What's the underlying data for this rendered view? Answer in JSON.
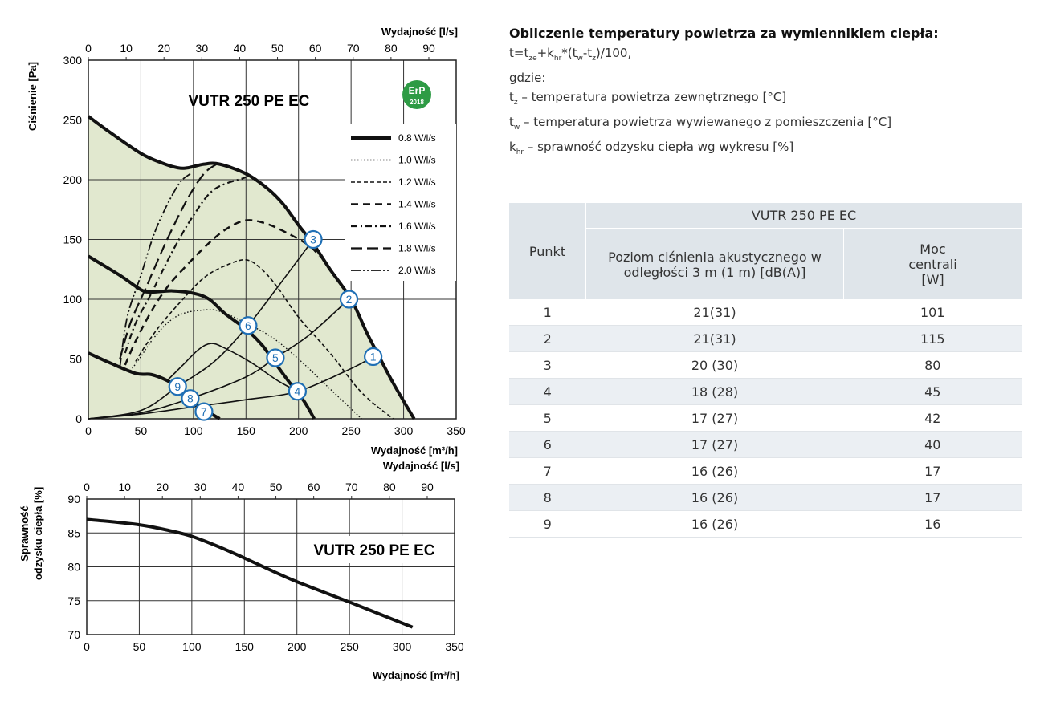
{
  "info": {
    "title": "Obliczenie temperatury powietrza za wymiennikiem ciepła:",
    "formula": [
      "t=t",
      "ze",
      "+k",
      "hr",
      "*(t",
      "w",
      "-t",
      "z",
      ")/100,"
    ],
    "where": "gdzie:",
    "defs": [
      {
        "sym": "t",
        "sub": "z",
        "text": " – temperatura powietrza zewnętrznego [°C]"
      },
      {
        "sym": "t",
        "sub": "w",
        "text": " – temperatura powietrza wywiewanego z pomieszczenia [°C]"
      },
      {
        "sym": "k",
        "sub": "hr",
        "text": " – sprawność odzysku ciepła wg wykresu [%]"
      }
    ]
  },
  "table": {
    "model": "VUTR 250 PE EC",
    "headers": [
      "Punkt",
      "Poziom ciśnienia akustycznego w odległości 3 m (1 m) [dB(A)]",
      "Moc centrali [W]"
    ],
    "rows": [
      [
        "1",
        "21(31)",
        "101"
      ],
      [
        "2",
        "21(31)",
        "115"
      ],
      [
        "3",
        "20 (30)",
        "80"
      ],
      [
        "4",
        "18 (28)",
        "45"
      ],
      [
        "5",
        "17 (27)",
        "42"
      ],
      [
        "6",
        "17 (27)",
        "40"
      ],
      [
        "7",
        "16 (26)",
        "17"
      ],
      [
        "8",
        "16 (26)",
        "17"
      ],
      [
        "9",
        "16 (26)",
        "16"
      ]
    ]
  },
  "chart_data": [
    {
      "type": "line",
      "title": "VUTR 250 PE EC",
      "badge": "ErP 2018",
      "xlabel": "Wydajność [m³/h]",
      "x2label": "Wydajność [l/s]",
      "ylabel": "Ciśnienie [Pa]",
      "xlim": [
        0,
        350
      ],
      "ylim": [
        0,
        300
      ],
      "xticks": [
        0,
        50,
        100,
        150,
        200,
        250,
        300,
        350
      ],
      "yticks": [
        0,
        50,
        100,
        150,
        200,
        250,
        300
      ],
      "x2ticks": [
        0,
        10,
        20,
        30,
        40,
        50,
        60,
        70,
        80,
        90
      ],
      "fill_color": "#e1e8cf",
      "legend": [
        "0.8 W/l/s",
        "1.0 W/l/s",
        "1.2 W/l/s",
        "1.4 W/l/s",
        "1.6 W/l/s",
        "1.8 W/l/s",
        "2.0 W/l/s"
      ],
      "fan_curves": [
        [
          [
            0,
            253
          ],
          [
            20,
            240
          ],
          [
            50,
            222
          ],
          [
            70,
            214
          ],
          [
            85,
            210
          ],
          [
            95,
            210
          ],
          [
            110,
            213
          ],
          [
            125,
            213
          ],
          [
            150,
            205
          ],
          [
            170,
            193
          ],
          [
            185,
            180
          ],
          [
            200,
            162
          ],
          [
            215,
            145
          ],
          [
            230,
            125
          ],
          [
            250,
            100
          ],
          [
            265,
            72
          ],
          [
            275,
            55
          ],
          [
            290,
            30
          ],
          [
            310,
            0
          ]
        ],
        [
          [
            0,
            136
          ],
          [
            30,
            120
          ],
          [
            50,
            108
          ],
          [
            60,
            106
          ],
          [
            80,
            107
          ],
          [
            100,
            105
          ],
          [
            115,
            100
          ],
          [
            130,
            88
          ],
          [
            150,
            75
          ],
          [
            165,
            62
          ],
          [
            175,
            50
          ],
          [
            190,
            32
          ],
          [
            205,
            15
          ],
          [
            215,
            0
          ]
        ],
        [
          [
            0,
            55
          ],
          [
            20,
            47
          ],
          [
            45,
            38
          ],
          [
            60,
            37
          ],
          [
            75,
            32
          ],
          [
            85,
            26
          ],
          [
            95,
            18
          ],
          [
            110,
            8
          ],
          [
            125,
            0
          ]
        ]
      ],
      "power_curves": [
        {
          "name": "1.0 W/l/s",
          "points": [
            [
              40,
              40
            ],
            [
              50,
              52
            ],
            [
              60,
              65
            ],
            [
              75,
              80
            ],
            [
              90,
              88
            ],
            [
              110,
              91
            ],
            [
              125,
              90
            ],
            [
              150,
              80
            ],
            [
              175,
              68
            ],
            [
              200,
              50
            ],
            [
              230,
              25
            ],
            [
              260,
              0
            ]
          ]
        },
        {
          "name": "1.2 W/l/s",
          "points": [
            [
              45,
              48
            ],
            [
              55,
              62
            ],
            [
              70,
              80
            ],
            [
              90,
              100
            ],
            [
              110,
              118
            ],
            [
              130,
              128
            ],
            [
              150,
              133
            ],
            [
              165,
              125
            ],
            [
              180,
              110
            ],
            [
              200,
              85
            ],
            [
              230,
              55
            ],
            [
              260,
              22
            ],
            [
              290,
              0
            ]
          ]
        },
        {
          "name": "1.4 W/l/s",
          "points": [
            [
              35,
              45
            ],
            [
              45,
              65
            ],
            [
              60,
              90
            ],
            [
              75,
              110
            ],
            [
              90,
              125
            ],
            [
              110,
              143
            ],
            [
              130,
              158
            ],
            [
              150,
              166
            ],
            [
              170,
              163
            ],
            [
              190,
              155
            ],
            [
              210,
              145
            ],
            [
              220,
              136
            ]
          ]
        },
        {
          "name": "1.6 W/l/s",
          "points": [
            [
              35,
              55
            ],
            [
              45,
              80
            ],
            [
              60,
              105
            ],
            [
              80,
              140
            ],
            [
              100,
              170
            ],
            [
              120,
              192
            ],
            [
              150,
              202
            ]
          ]
        },
        {
          "name": "1.8 W/l/s",
          "points": [
            [
              30,
              50
            ],
            [
              40,
              80
            ],
            [
              55,
              110
            ],
            [
              75,
              150
            ],
            [
              95,
              185
            ],
            [
              110,
              205
            ],
            [
              122,
              213
            ]
          ]
        },
        {
          "name": "2.0 W/l/s",
          "points": [
            [
              30,
              43
            ],
            [
              37,
              85
            ],
            [
              50,
              120
            ],
            [
              65,
              160
            ],
            [
              85,
              195
            ],
            [
              97,
              205
            ]
          ]
        }
      ],
      "system_curves": [
        [
          [
            0,
            0
          ],
          [
            50,
            4
          ],
          [
            100,
            10
          ],
          [
            150,
            16
          ],
          [
            199,
            23
          ],
          [
            250,
            42
          ],
          [
            271,
            52
          ]
        ],
        [
          [
            0,
            0
          ],
          [
            50,
            5
          ],
          [
            97,
            17
          ],
          [
            150,
            35
          ],
          [
            178,
            51
          ],
          [
            210,
            70
          ],
          [
            248,
            100
          ]
        ],
        [
          [
            0,
            0
          ],
          [
            50,
            7
          ],
          [
            85,
            27
          ],
          [
            120,
            48
          ],
          [
            152,
            78
          ],
          [
            180,
            110
          ],
          [
            214,
            150
          ]
        ],
        [
          [
            75,
            32
          ],
          [
            90,
            45
          ],
          [
            105,
            58
          ],
          [
            117,
            63
          ],
          [
            130,
            59
          ],
          [
            155,
            47
          ],
          [
            180,
            32
          ],
          [
            199,
            23
          ]
        ]
      ],
      "points": [
        {
          "label": "1",
          "x": 271,
          "y": 52
        },
        {
          "label": "2",
          "x": 248,
          "y": 100
        },
        {
          "label": "3",
          "x": 214,
          "y": 150
        },
        {
          "label": "4",
          "x": 199,
          "y": 23
        },
        {
          "label": "5",
          "x": 178,
          "y": 51
        },
        {
          "label": "6",
          "x": 152,
          "y": 78
        },
        {
          "label": "7",
          "x": 110,
          "y": 6
        },
        {
          "label": "8",
          "x": 97,
          "y": 17
        },
        {
          "label": "9",
          "x": 85,
          "y": 27
        }
      ]
    },
    {
      "type": "line",
      "title": "VUTR 250 PE EC",
      "xlabel": "Wydajność [m³/h]",
      "x2label": "Wydajność [l/s]",
      "ylabel": "Sprawność odzysku ciepła [%]",
      "ylabel_lines": [
        "Sprawność",
        "odzysku ciepła [%]"
      ],
      "xlim": [
        0,
        350
      ],
      "ylim": [
        70,
        90
      ],
      "xticks": [
        0,
        50,
        100,
        150,
        200,
        250,
        300,
        350
      ],
      "yticks": [
        70,
        75,
        80,
        85,
        90
      ],
      "x2ticks": [
        0,
        10,
        20,
        30,
        40,
        50,
        60,
        70,
        80,
        90
      ],
      "series": [
        {
          "name": "efficiency",
          "x": [
            0,
            50,
            80,
            100,
            125,
            150,
            175,
            200,
            250,
            310
          ],
          "y": [
            87,
            86.2,
            85.3,
            84.5,
            83,
            81.3,
            79.5,
            77.8,
            74.8,
            71.1
          ]
        }
      ]
    }
  ]
}
